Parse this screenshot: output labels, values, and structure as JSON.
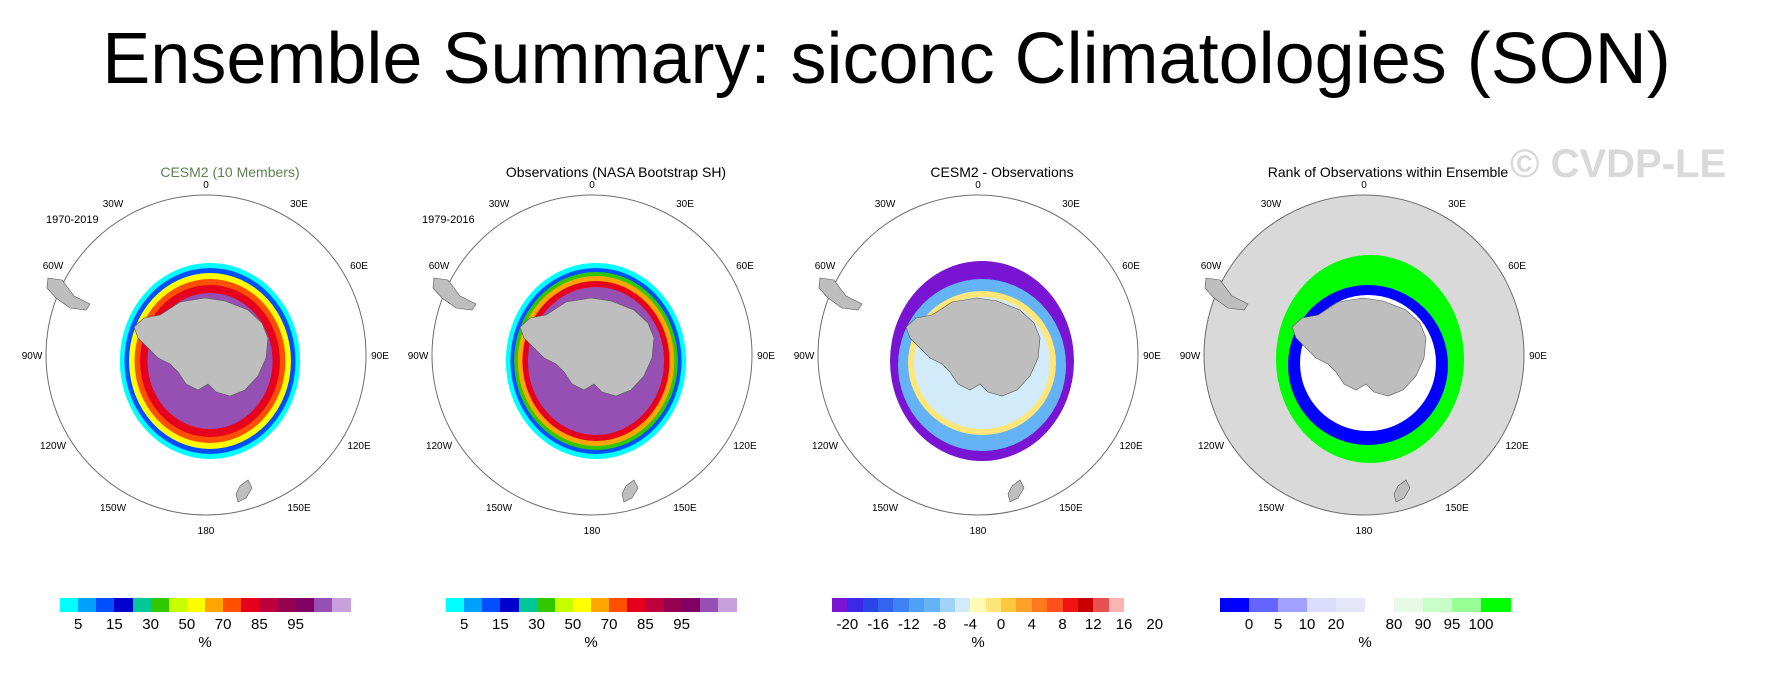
{
  "page": {
    "title": "Ensemble Summary: siconc Climatologies (SON)",
    "watermark": "© CVDP-LE"
  },
  "colors": {
    "ocean": "#ffffff",
    "land": "#bebebe",
    "rank_ocean": "#d9d9d9",
    "ring": "#6e6e6e"
  },
  "lon_labels": [
    "0",
    "30E",
    "60E",
    "90E",
    "120E",
    "150E",
    "180",
    "150W",
    "120W",
    "90W",
    "60W",
    "30W"
  ],
  "panels": [
    {
      "title": "CESM2 (10 Members)",
      "period": "1970-2019",
      "colorbar": {
        "colors": [
          "#00ffff",
          "#00a0ff",
          "#0050ff",
          "#0000cd",
          "#00c896",
          "#32c800",
          "#c8ff00",
          "#ffff00",
          "#ffa500",
          "#ff5000",
          "#e6001e",
          "#be003c",
          "#960050",
          "#800064",
          "#9650b4",
          "#c8a0dc"
        ],
        "labels": [
          "5",
          "15",
          "30",
          "50",
          "70",
          "85",
          "95"
        ],
        "unit": "%"
      }
    },
    {
      "title": "Observations (NASA Bootstrap SH)",
      "period": "1979-2016",
      "colorbar": {
        "colors": [
          "#00ffff",
          "#00a0ff",
          "#0050ff",
          "#0000cd",
          "#00c896",
          "#32c800",
          "#c8ff00",
          "#ffff00",
          "#ffa500",
          "#ff5000",
          "#e6001e",
          "#be003c",
          "#960050",
          "#800064",
          "#9650b4",
          "#c8a0dc"
        ],
        "labels": [
          "5",
          "15",
          "30",
          "50",
          "70",
          "85",
          "95"
        ],
        "unit": "%"
      }
    },
    {
      "title": "CESM2 - Observations",
      "period": "",
      "colorbar": {
        "colors": [
          "#7814d2",
          "#3c28e6",
          "#2846e6",
          "#3264f0",
          "#3c82f0",
          "#50a0f5",
          "#64b4f5",
          "#a0d2fa",
          "#d2ebfa",
          "#fffab4",
          "#ffe678",
          "#ffc83c",
          "#ffa028",
          "#ff781e",
          "#ff501e",
          "#f01414",
          "#c80000",
          "#e65050",
          "#fab4b4"
        ],
        "labels": [
          "-20",
          "-16",
          "-12",
          "-8",
          "-4",
          "0",
          "4",
          "8",
          "12",
          "16",
          "20"
        ],
        "unit": "%"
      }
    },
    {
      "title": "Rank of Observations within Ensemble",
      "period": "",
      "colorbar": {
        "colors": [
          "#0000ff",
          "#6464ff",
          "#a0a0ff",
          "#dcdcff",
          "#e6e6fa",
          "#ffffff",
          "#e6fae6",
          "#c8ffc8",
          "#96ff96",
          "#00ff00"
        ],
        "labels": [
          "0",
          "5",
          "10",
          "20",
          "80",
          "90",
          "95",
          "100"
        ],
        "unit": "%"
      }
    }
  ]
}
